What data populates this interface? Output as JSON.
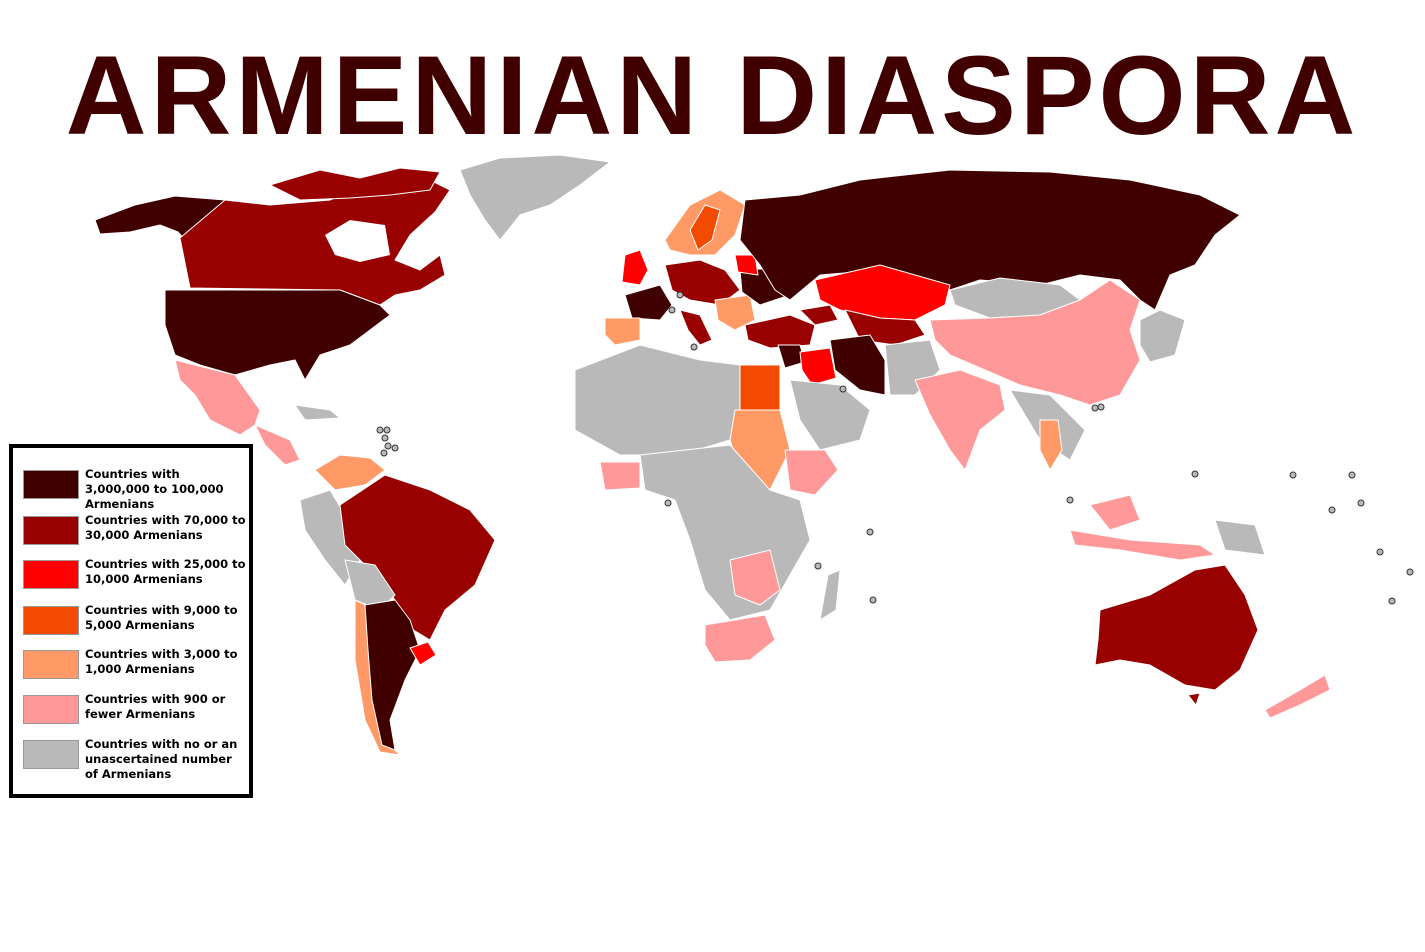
{
  "title": "ARMENIAN DIASPORA",
  "colors": {
    "c1": "#400000",
    "c2": "#990000",
    "c3": "#ff0000",
    "c4": "#f24a00",
    "c5": "#ff9966",
    "c6": "#ff9999",
    "c7": "#b9b9b9"
  },
  "legend": [
    {
      "key": "c1",
      "label": "Countries with 3,000,000 to 100,000 Armenians"
    },
    {
      "key": "c2",
      "label": "Countries with 70,000 to 30,000 Armenians"
    },
    {
      "key": "c3",
      "label": "Countries with 25,000 to 10,000 Armenians"
    },
    {
      "key": "c4",
      "label": "Countries with 9,000 to 5,000 Armenians"
    },
    {
      "key": "c5",
      "label": "Countries with 3,000 to 1,000 Armenians"
    },
    {
      "key": "c6",
      "label": "Countries with 900 or fewer Armenians"
    },
    {
      "key": "c7",
      "label": "Countries with no or an unascertained number of Armenians"
    }
  ]
}
